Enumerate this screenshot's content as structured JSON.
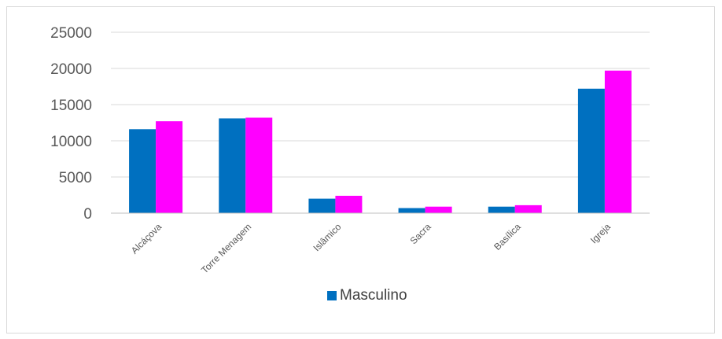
{
  "chart_data": {
    "type": "bar",
    "categories": [
      "Alcáçova",
      "Torre Menagem",
      "Islâmico",
      "Sacra",
      "Basílica",
      "Igreja"
    ],
    "series": [
      {
        "name": "Masculino",
        "color": "#0070c0",
        "values": [
          11600,
          13100,
          2000,
          700,
          900,
          17200
        ]
      },
      {
        "name": "",
        "color": "#ff00ff",
        "values": [
          12700,
          13200,
          2400,
          900,
          1100,
          19700
        ]
      }
    ],
    "ylim": [
      0,
      25000
    ],
    "yticks": [
      0,
      5000,
      10000,
      15000,
      20000,
      25000
    ],
    "grid": true,
    "legend_position": "bottom",
    "title": "",
    "xlabel": "",
    "ylabel": ""
  }
}
